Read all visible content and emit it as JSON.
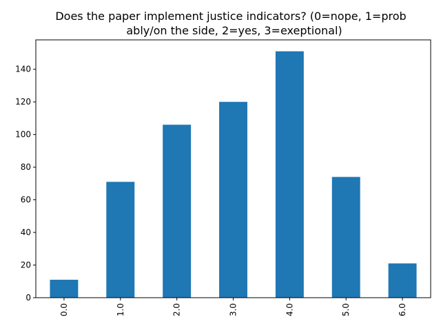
{
  "chart_data": {
    "type": "bar",
    "title_lines": [
      "Does the paper implement justice indicators? (0=nope, 1=prob",
      "ably/on the side, 2=yes, 3=exeptional)"
    ],
    "xlabel": "",
    "ylabel": "",
    "categories": [
      "0.0",
      "1.0",
      "2.0",
      "3.0",
      "4.0",
      "5.0",
      "6.0"
    ],
    "values": [
      11,
      71,
      106,
      120,
      151,
      74,
      21
    ],
    "ylim": [
      0,
      158
    ],
    "yticks": [
      0,
      20,
      40,
      60,
      80,
      100,
      120,
      140
    ],
    "bar_color": "#1f77b4",
    "grid": false,
    "legend": "none"
  }
}
